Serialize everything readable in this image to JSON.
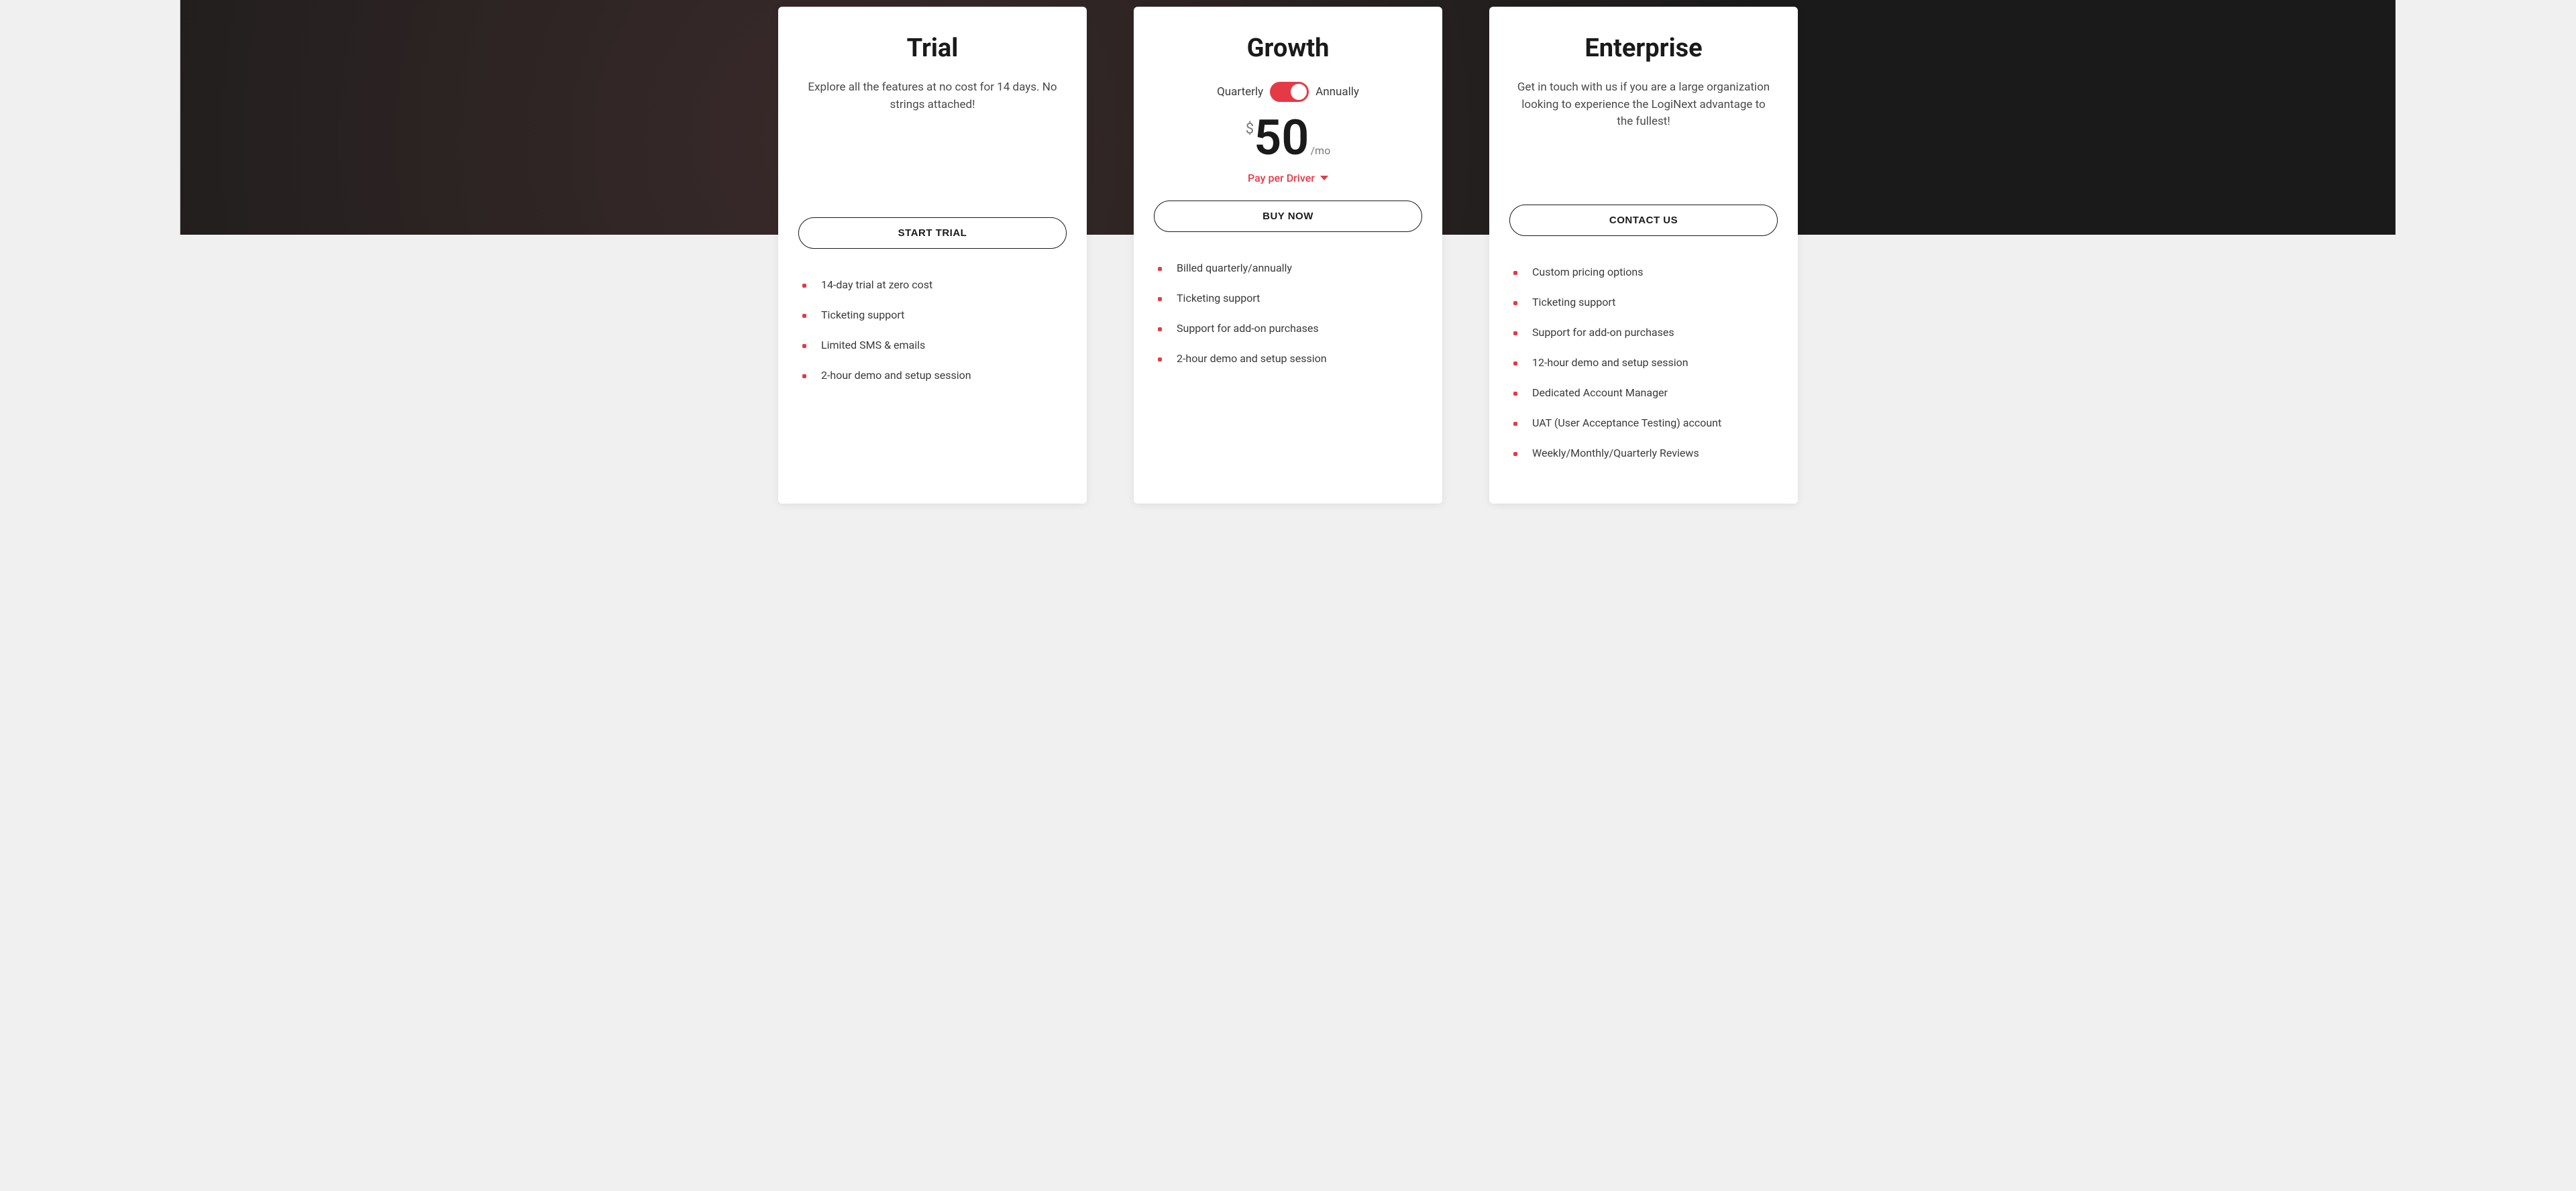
{
  "colors": {
    "accent": "#e63946",
    "text_primary": "#1a1a1a",
    "text_secondary": "#4a4a4a",
    "card_bg": "#ffffff",
    "page_bg": "#f0f0f0"
  },
  "plans": {
    "trial": {
      "title": "Trial",
      "description": "Explore all the features at no cost for 14 days. No strings attached!",
      "cta": "START TRIAL",
      "features": [
        "14-day trial at zero cost",
        "Ticketing support",
        "Limited SMS & emails",
        "2-hour demo and setup session"
      ]
    },
    "growth": {
      "title": "Growth",
      "toggle_left": "Quarterly",
      "toggle_right": "Annually",
      "currency": "$",
      "price": "50",
      "period": "/mo",
      "pay_per_label": "Pay per Driver",
      "cta": "BUY NOW",
      "features": [
        "Billed quarterly/annually",
        "Ticketing support",
        "Support for add-on purchases",
        "2-hour demo and setup session"
      ]
    },
    "enterprise": {
      "title": "Enterprise",
      "description": "Get in touch with us if you are a large organization looking to experience the LogiNext advantage to the fullest!",
      "cta": "CONTACT US",
      "features": [
        "Custom pricing options",
        "Ticketing support",
        "Support for add-on purchases",
        "12-hour demo and setup session",
        "Dedicated Account Manager",
        "UAT (User Acceptance Testing) account",
        "Weekly/Monthly/Quarterly Reviews"
      ]
    }
  }
}
